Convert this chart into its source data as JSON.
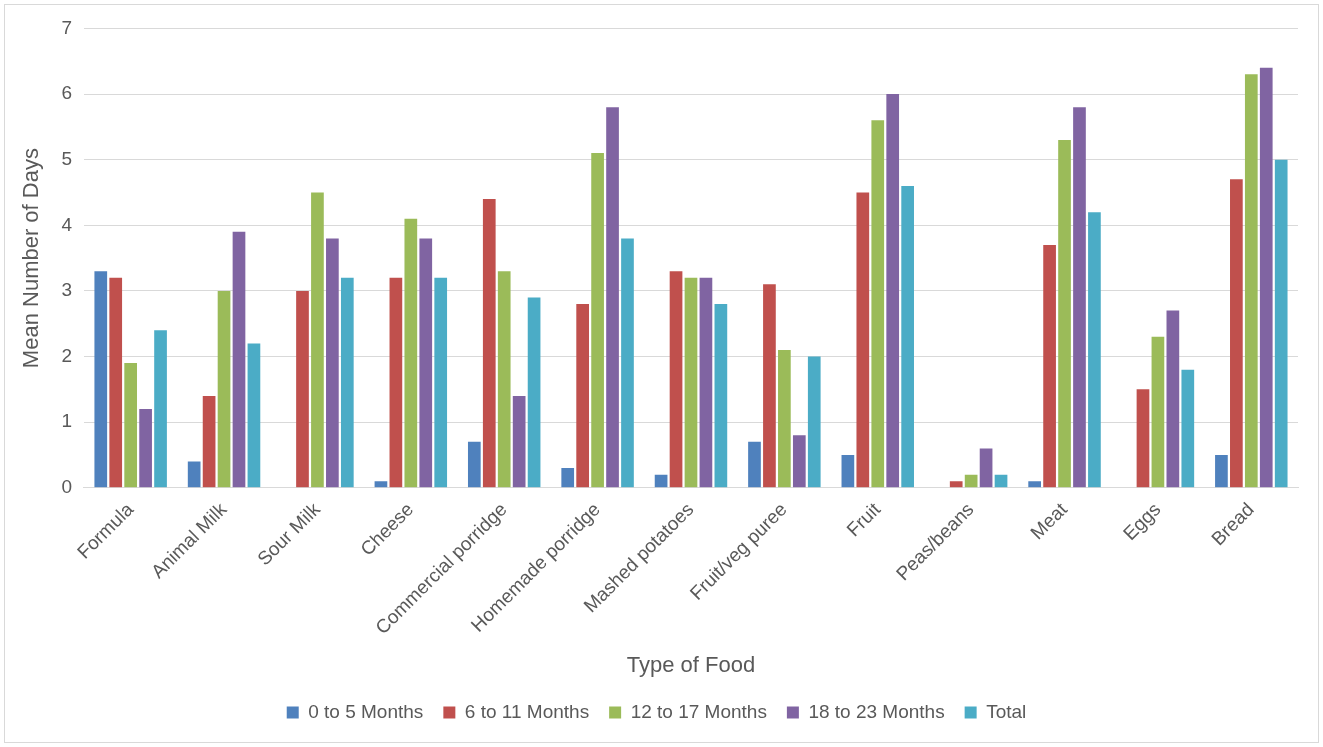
{
  "chart_data": {
    "type": "bar",
    "xlabel": "Type of Food",
    "ylabel": "Mean Number of Days",
    "categories": [
      "Formula",
      "Animal Milk",
      "Sour Milk",
      "Cheese",
      "Commercial porridge",
      "Homemade porridge",
      "Mashed potatoes",
      "Fruit/veg puree",
      "Fruit",
      "Peas/beans",
      "Meat",
      "Eggs",
      "Bread"
    ],
    "series": [
      {
        "name": "0 to 5 Months",
        "color": "#4f81bd",
        "values": [
          3.3,
          0.4,
          0,
          0.1,
          0.7,
          0.3,
          0.2,
          0.7,
          0.5,
          0,
          0.1,
          0,
          0.5
        ]
      },
      {
        "name": "6 to 11 Months",
        "color": "#c0504d",
        "values": [
          3.2,
          1.4,
          3.0,
          3.2,
          4.4,
          2.8,
          3.3,
          3.1,
          4.5,
          0.1,
          3.7,
          1.5,
          4.7
        ]
      },
      {
        "name": "12 to 17 Months",
        "color": "#9bbb59",
        "values": [
          1.9,
          3.0,
          4.5,
          4.1,
          3.3,
          5.1,
          3.2,
          2.1,
          5.6,
          0.2,
          5.3,
          2.3,
          6.3
        ]
      },
      {
        "name": "18 to 23 Months",
        "color": "#8064a2",
        "values": [
          1.2,
          3.9,
          3.8,
          3.8,
          1.4,
          5.8,
          3.2,
          0.8,
          6.0,
          0.6,
          5.8,
          2.7,
          6.4
        ]
      },
      {
        "name": "Total",
        "color": "#4bacc6",
        "values": [
          2.4,
          2.2,
          3.2,
          3.2,
          2.9,
          3.8,
          2.8,
          2.0,
          4.6,
          0.2,
          4.2,
          1.8,
          5.0
        ]
      }
    ],
    "ylim": [
      0,
      7
    ],
    "yticks": [
      0,
      1,
      2,
      3,
      4,
      5,
      6,
      7
    ],
    "grid": "y",
    "legend": "bottom"
  }
}
